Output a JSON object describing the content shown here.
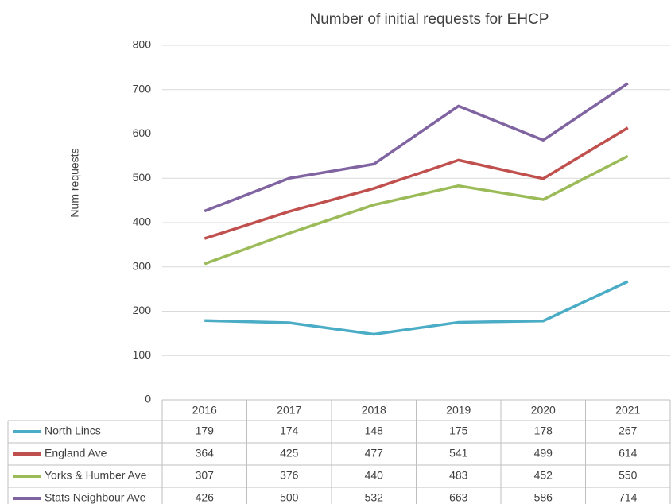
{
  "chart_data": {
    "type": "line",
    "title": "Number of initial requests for EHCP",
    "y_label": "Num requests",
    "categories": [
      "2016",
      "2017",
      "2018",
      "2019",
      "2020",
      "2021"
    ],
    "series": [
      {
        "name": "North Lincs",
        "color": "#4bacc6",
        "values": [
          179,
          174,
          148,
          175,
          178,
          267
        ]
      },
      {
        "name": "England Ave",
        "color": "#c0504d",
        "values": [
          364,
          425,
          477,
          541,
          499,
          614
        ]
      },
      {
        "name": "Yorks & Humber Ave",
        "color": "#9bbb59",
        "values": [
          307,
          376,
          440,
          483,
          452,
          550
        ]
      },
      {
        "name": "Stats Neighbour Ave",
        "color": "#8064a2",
        "values": [
          426,
          500,
          532,
          663,
          586,
          714
        ]
      }
    ],
    "ylim": [
      0,
      800
    ],
    "yticks": [
      0,
      100,
      200,
      300,
      400,
      500,
      600,
      700,
      800
    ],
    "grid": true,
    "legend": "table"
  }
}
